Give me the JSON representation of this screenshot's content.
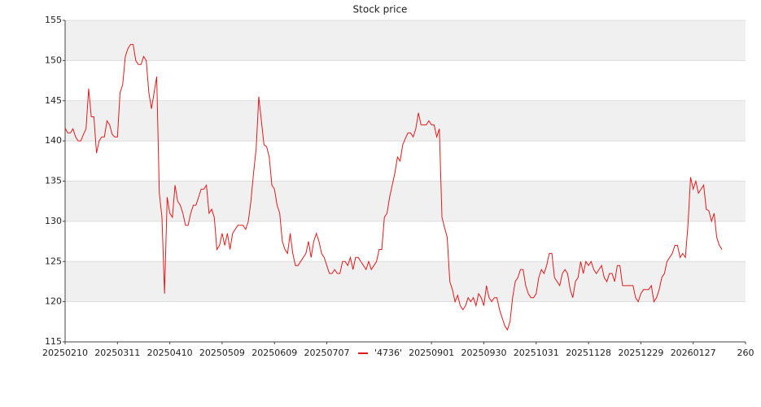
{
  "chart_data": {
    "type": "line",
    "title": "Stock price",
    "x": [
      0,
      1,
      2,
      3,
      4,
      5,
      6,
      7,
      8,
      9,
      10,
      11,
      12,
      13,
      14,
      15,
      16,
      17,
      18,
      19,
      20,
      21,
      22,
      23,
      24,
      25,
      26,
      27,
      28,
      29,
      30,
      31,
      32,
      33,
      34,
      35,
      36,
      37,
      38,
      39,
      40,
      41,
      42,
      43,
      44,
      45,
      46,
      47,
      48,
      49,
      50,
      51,
      52,
      53,
      54,
      55,
      56,
      57,
      58,
      59,
      60,
      61,
      62,
      63,
      64,
      65,
      66,
      67,
      68,
      69,
      70,
      71,
      72,
      73,
      74,
      75,
      76,
      77,
      78,
      79,
      80,
      81,
      82,
      83,
      84,
      85,
      86,
      87,
      88,
      89,
      90,
      91,
      92,
      93,
      94,
      95,
      96,
      97,
      98,
      99,
      100,
      101,
      102,
      103,
      104,
      105,
      106,
      107,
      108,
      109,
      110,
      111,
      112,
      113,
      114,
      115,
      116,
      117,
      118,
      119,
      120,
      121,
      122,
      123,
      124,
      125,
      126,
      127,
      128,
      129,
      130,
      131,
      132,
      133,
      134,
      135,
      136,
      137,
      138,
      139,
      140,
      141,
      142,
      143,
      144,
      145,
      146,
      147,
      148,
      149,
      150,
      151,
      152,
      153,
      154,
      155,
      156,
      157,
      158,
      159,
      160,
      161,
      162,
      163,
      164,
      165,
      166,
      167,
      168,
      169,
      170,
      171,
      172,
      173,
      174,
      175,
      176,
      177,
      178,
      179,
      180,
      181,
      182,
      183,
      184,
      185,
      186,
      187,
      188,
      189,
      190,
      191,
      192,
      193,
      194,
      195,
      196,
      197,
      198,
      199,
      200,
      201,
      202,
      203,
      204,
      205,
      206,
      207,
      208,
      209,
      210,
      211,
      212,
      213,
      214,
      215,
      216,
      217,
      218,
      219,
      220,
      221,
      222,
      223,
      224,
      225,
      226,
      227,
      228,
      229,
      230,
      231,
      232,
      233,
      234,
      235,
      236,
      237,
      238,
      239,
      240,
      241,
      242,
      243,
      244,
      245,
      246,
      247,
      248,
      249,
      250,
      251
    ],
    "series": [
      {
        "name": "'4736'",
        "color": "#e41a1c",
        "values": [
          141.6,
          141,
          141,
          141.5,
          140.5,
          140,
          140,
          140.8,
          141.5,
          146.5,
          143,
          143,
          138.5,
          140,
          140.5,
          140.5,
          142.5,
          142,
          140.8,
          140.5,
          140.5,
          146,
          147,
          150.5,
          151.5,
          152,
          152,
          150,
          149.5,
          149.5,
          150.5,
          150,
          146,
          144,
          146,
          148,
          133.5,
          130.5,
          121,
          133,
          131,
          130.5,
          134.5,
          132.5,
          132,
          131,
          129.5,
          129.5,
          131,
          132,
          132,
          133,
          134,
          134,
          134.5,
          131,
          131.5,
          130.5,
          126.5,
          127,
          128.5,
          127,
          128.5,
          126.5,
          128.5,
          129,
          129.5,
          129.5,
          129.5,
          129,
          130,
          132.5,
          136,
          139,
          145.5,
          142.5,
          139.5,
          139.3,
          138,
          134.5,
          134,
          132,
          131,
          127.5,
          126.5,
          126,
          128.5,
          126,
          124.5,
          124.5,
          125,
          125.5,
          126,
          127.5,
          125.5,
          127.5,
          128.5,
          127.5,
          126,
          125.5,
          124.5,
          123.5,
          123.5,
          124,
          123.5,
          123.5,
          125,
          125,
          124.5,
          125.5,
          124,
          125.5,
          125.5,
          125,
          124.5,
          124,
          125,
          124,
          124.5,
          125,
          126.5,
          126.5,
          130.5,
          131,
          133,
          134.5,
          136,
          138,
          137.5,
          139.5,
          140.3,
          141,
          141,
          140.5,
          141.5,
          143.5,
          142,
          142,
          142,
          142.5,
          142,
          142,
          140.5,
          141.5,
          130.5,
          129.2,
          128,
          122.5,
          121.5,
          120,
          120.8,
          119.5,
          119,
          119.5,
          120.5,
          120,
          120.5,
          119.5,
          121,
          120.5,
          119.5,
          122,
          120.5,
          120,
          120.5,
          120.5,
          119,
          118,
          117,
          116.5,
          117.5,
          120.5,
          122.5,
          123,
          124,
          124,
          122,
          121,
          120.5,
          120.5,
          121,
          123,
          124,
          123.5,
          124.5,
          126,
          126,
          123,
          122.5,
          122,
          123.5,
          124,
          123.5,
          121.5,
          120.5,
          122.5,
          123,
          125,
          123.5,
          125,
          124.5,
          125,
          124,
          123.5,
          124,
          124.5,
          123,
          122.5,
          123.5,
          123.5,
          122.5,
          124.5,
          124.5,
          122,
          122,
          122,
          122,
          122,
          120.5,
          120,
          121,
          121.5,
          121.5,
          121.5,
          122,
          120,
          120.5,
          121.5,
          123,
          123.5,
          125,
          125.5,
          126,
          127,
          127,
          125.5,
          126,
          125.5,
          129.5,
          135.5,
          134,
          135,
          133.5,
          134,
          134.5,
          131.5,
          131.3,
          130,
          131,
          128,
          127,
          126.5
        ]
      }
    ],
    "xlim": [
      0,
      260
    ],
    "xticks": [
      {
        "value": 0,
        "label": "20250210"
      },
      {
        "value": 20,
        "label": "20250311"
      },
      {
        "value": 40,
        "label": "20250410"
      },
      {
        "value": 60,
        "label": "20250509"
      },
      {
        "value": 80,
        "label": "20250609"
      },
      {
        "value": 100,
        "label": "20250707"
      },
      {
        "value": 140,
        "label": "20250901"
      },
      {
        "value": 160,
        "label": "20250930"
      },
      {
        "value": 180,
        "label": "20251031"
      },
      {
        "value": 200,
        "label": "20251128"
      },
      {
        "value": 220,
        "label": "20251229"
      },
      {
        "value": 240,
        "label": "20260127"
      },
      260
    ],
    "ylim": [
      115,
      155
    ],
    "yticks": [
      115,
      120,
      125,
      130,
      135,
      140,
      145,
      150,
      155
    ],
    "grid": true,
    "legend": "bottom"
  }
}
